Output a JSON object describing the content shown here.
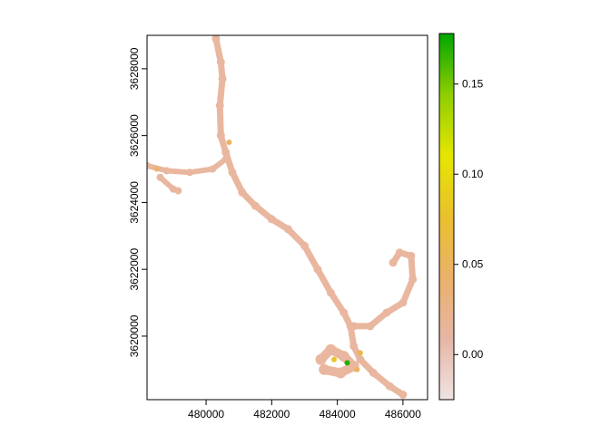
{
  "x_axis": {
    "ticks": [
      {
        "value": 480000,
        "label": "480000"
      },
      {
        "value": 482000,
        "label": "482000"
      },
      {
        "value": 484000,
        "label": "484000"
      },
      {
        "value": 486000,
        "label": "486000"
      }
    ],
    "range": [
      478200,
      486750
    ]
  },
  "y_axis": {
    "ticks": [
      {
        "value": 3620000,
        "label": "3620000"
      },
      {
        "value": 3622000,
        "label": "3622000"
      },
      {
        "value": 3624000,
        "label": "3624000"
      },
      {
        "value": 3626000,
        "label": "3626000"
      },
      {
        "value": 3628000,
        "label": "3628000"
      }
    ],
    "range": [
      3618100,
      3629000
    ]
  },
  "legend": {
    "ticks": [
      {
        "value": 0.0,
        "label": "0.00"
      },
      {
        "value": 0.05,
        "label": "0.05"
      },
      {
        "value": 0.1,
        "label": "0.10"
      },
      {
        "value": 0.15,
        "label": "0.15"
      }
    ],
    "range": [
      -0.025,
      0.178
    ],
    "colors": [
      "#efe3e3",
      "#e6b6a5",
      "#ebb16a",
      "#e9c02c",
      "#e6e600",
      "#8fce00",
      "#00a600"
    ],
    "placement": "right"
  },
  "colors": {
    "track": "#e9b79f",
    "track_mid": "#e8b886",
    "track_hot": "#e4c44a",
    "track_peak": "#3eb200",
    "frame": "#000000"
  },
  "chart_data": {
    "type": "heatmap",
    "title": "",
    "xlabel": "",
    "ylabel": "",
    "xlim": [
      478200,
      486750
    ],
    "ylim": [
      3618100,
      3629000
    ],
    "color_range": [
      -0.025,
      0.178
    ],
    "track": [
      [
        480300,
        3628900
      ],
      [
        480450,
        3628200
      ],
      [
        480500,
        3627700
      ],
      [
        480420,
        3626900
      ],
      [
        480450,
        3626000
      ],
      [
        480600,
        3625500
      ],
      [
        480800,
        3624900
      ],
      [
        481100,
        3624300
      ],
      [
        481500,
        3623900
      ],
      [
        482000,
        3623500
      ],
      [
        482500,
        3623200
      ],
      [
        483000,
        3622700
      ],
      [
        483400,
        3622000
      ],
      [
        483800,
        3621300
      ],
      [
        484200,
        3620700
      ],
      [
        484400,
        3620300
      ],
      [
        484500,
        3619700
      ],
      [
        484700,
        3619300
      ],
      [
        485100,
        3618900
      ],
      [
        485600,
        3618500
      ],
      [
        486000,
        3618250
      ]
    ],
    "branch_west": [
      [
        478200,
        3625100
      ],
      [
        478800,
        3624950
      ],
      [
        479500,
        3624900
      ],
      [
        480200,
        3625000
      ],
      [
        480600,
        3625300
      ]
    ],
    "branch_loop": [
      [
        478600,
        3624750
      ],
      [
        479000,
        3624400
      ],
      [
        479150,
        3624350
      ]
    ],
    "branch_east": [
      [
        484500,
        3620300
      ],
      [
        485000,
        3620300
      ],
      [
        485500,
        3620700
      ],
      [
        486000,
        3621000
      ],
      [
        486300,
        3621700
      ],
      [
        486250,
        3622400
      ],
      [
        485900,
        3622500
      ],
      [
        485700,
        3622200
      ]
    ],
    "cluster_south": [
      [
        483500,
        3619300
      ],
      [
        483800,
        3619600
      ],
      [
        484200,
        3619400
      ],
      [
        484500,
        3619100
      ],
      [
        484100,
        3618900
      ],
      [
        483600,
        3619000
      ]
    ],
    "hotspots": [
      {
        "x": 484300,
        "y": 3619200,
        "value": 0.17
      },
      {
        "x": 483900,
        "y": 3619300,
        "value": 0.08
      },
      {
        "x": 484700,
        "y": 3619500,
        "value": 0.06
      },
      {
        "x": 480700,
        "y": 3625800,
        "value": 0.05
      },
      {
        "x": 478500,
        "y": 3625000,
        "value": 0.04
      },
      {
        "x": 484600,
        "y": 3619000,
        "value": 0.05
      }
    ]
  }
}
